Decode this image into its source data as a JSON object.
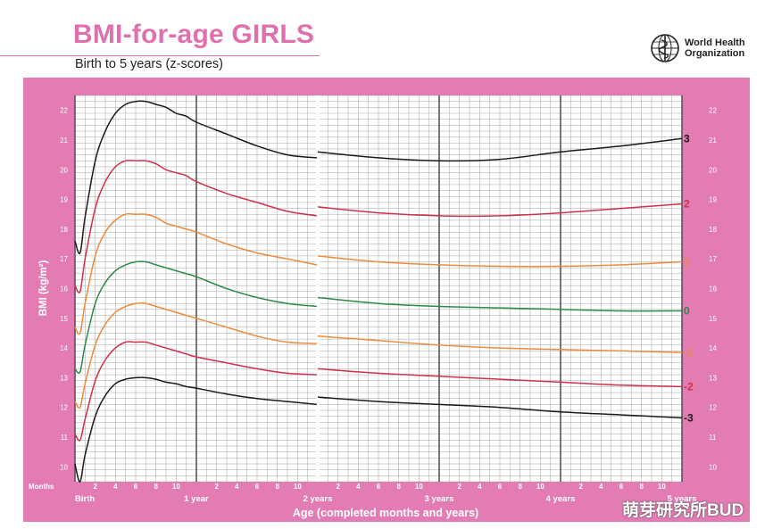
{
  "header": {
    "title": "BMI-for-age GIRLS",
    "subtitle": "Birth to 5 years (z-scores)",
    "org_line1": "World Health",
    "org_line2": "Organization"
  },
  "watermark": "萌芽研究所BUD",
  "colors": {
    "frame": "#e37cb3",
    "grid_minor": "#9a9a9a",
    "grid_major": "#555555",
    "sd3": "#1a1a1a",
    "sd2": "#d0304a",
    "sd1": "#f08a3a",
    "median": "#2a8a48"
  },
  "chart_data": {
    "type": "line",
    "title": "BMI-for-age GIRLS",
    "subtitle": "Birth to 5 years (z-scores)",
    "xlabel": "Age (completed months and years)",
    "ylabel": "BMI (kg/m²)",
    "xlim": [
      0,
      60
    ],
    "ylim": [
      9.5,
      22.5
    ],
    "yticks": [
      10,
      11,
      12,
      13,
      14,
      15,
      16,
      17,
      18,
      19,
      20,
      21,
      22
    ],
    "months_label": "Months",
    "x_month_labels": [
      "2",
      "4",
      "6",
      "8",
      "10"
    ],
    "x_year_labels": [
      "Birth",
      "1 year",
      "2 years",
      "3 years",
      "4 years",
      "5 years"
    ],
    "grid": true,
    "gap_at_month": 24,
    "series": [
      {
        "name": "3",
        "color_key": "sd3",
        "x": [
          0,
          0.5,
          1,
          2,
          3,
          4,
          5,
          6,
          7,
          8,
          9,
          10,
          11,
          12,
          15,
          18,
          21,
          23.9,
          24,
          30,
          36,
          42,
          48,
          54,
          60
        ],
        "y": [
          17.6,
          17.2,
          18.4,
          20.3,
          21.3,
          21.9,
          22.2,
          22.3,
          22.3,
          22.2,
          22.1,
          21.9,
          21.8,
          21.6,
          21.2,
          20.8,
          20.5,
          20.4,
          20.6,
          20.4,
          20.3,
          20.35,
          20.6,
          20.8,
          21.05
        ]
      },
      {
        "name": "2",
        "color_key": "sd2",
        "x": [
          0,
          0.5,
          1,
          2,
          3,
          4,
          5,
          6,
          7,
          8,
          9,
          10,
          11,
          12,
          15,
          18,
          21,
          23.9,
          24,
          30,
          36,
          42,
          48,
          54,
          60
        ],
        "y": [
          16.1,
          15.9,
          17.0,
          18.7,
          19.6,
          20.1,
          20.3,
          20.3,
          20.3,
          20.2,
          20.0,
          19.9,
          19.8,
          19.6,
          19.2,
          18.9,
          18.6,
          18.45,
          18.75,
          18.55,
          18.45,
          18.45,
          18.55,
          18.7,
          18.85
        ]
      },
      {
        "name": "1",
        "color_key": "sd1",
        "x": [
          0,
          0.5,
          1,
          2,
          3,
          4,
          5,
          6,
          7,
          8,
          9,
          10,
          11,
          12,
          15,
          18,
          21,
          23.9,
          24,
          30,
          36,
          42,
          48,
          54,
          60
        ],
        "y": [
          14.7,
          14.5,
          15.5,
          17.1,
          17.9,
          18.3,
          18.5,
          18.5,
          18.5,
          18.4,
          18.2,
          18.1,
          18.0,
          17.9,
          17.5,
          17.2,
          17.0,
          16.8,
          17.1,
          16.9,
          16.8,
          16.75,
          16.75,
          16.8,
          16.9
        ]
      },
      {
        "name": "0",
        "color_key": "median",
        "x": [
          0,
          0.5,
          1,
          2,
          3,
          4,
          5,
          6,
          7,
          8,
          9,
          10,
          11,
          12,
          15,
          18,
          21,
          23.9,
          24,
          30,
          36,
          42,
          48,
          54,
          60
        ],
        "y": [
          13.3,
          13.2,
          14.1,
          15.5,
          16.2,
          16.6,
          16.8,
          16.9,
          16.9,
          16.8,
          16.7,
          16.6,
          16.5,
          16.4,
          16.0,
          15.7,
          15.5,
          15.4,
          15.7,
          15.5,
          15.4,
          15.35,
          15.3,
          15.25,
          15.25
        ]
      },
      {
        "name": "-1",
        "color_key": "sd1",
        "x": [
          0,
          0.5,
          1,
          2,
          3,
          4,
          5,
          6,
          7,
          8,
          9,
          10,
          11,
          12,
          15,
          18,
          21,
          23.9,
          24,
          30,
          36,
          42,
          48,
          54,
          60
        ],
        "y": [
          12.2,
          12.0,
          12.8,
          14.1,
          14.8,
          15.2,
          15.4,
          15.5,
          15.5,
          15.4,
          15.3,
          15.2,
          15.1,
          15.0,
          14.7,
          14.4,
          14.2,
          14.15,
          14.4,
          14.25,
          14.1,
          14.0,
          13.95,
          13.9,
          13.85
        ]
      },
      {
        "name": "-2",
        "color_key": "sd2",
        "x": [
          0,
          0.5,
          1,
          2,
          3,
          4,
          5,
          6,
          7,
          8,
          9,
          10,
          11,
          12,
          15,
          18,
          21,
          23.9,
          24,
          30,
          36,
          42,
          48,
          54,
          60
        ],
        "y": [
          11.1,
          10.9,
          11.6,
          12.9,
          13.6,
          14.0,
          14.2,
          14.2,
          14.2,
          14.1,
          14.0,
          13.9,
          13.8,
          13.7,
          13.5,
          13.3,
          13.15,
          13.1,
          13.3,
          13.15,
          13.05,
          12.95,
          12.85,
          12.75,
          12.7
        ]
      },
      {
        "name": "-3",
        "color_key": "sd3",
        "x": [
          0,
          0.5,
          1,
          2,
          3,
          4,
          5,
          6,
          7,
          8,
          9,
          10,
          11,
          12,
          15,
          18,
          21,
          23.9,
          24,
          30,
          36,
          42,
          48,
          54,
          60
        ],
        "y": [
          10.1,
          9.5,
          10.4,
          11.7,
          12.4,
          12.8,
          12.95,
          13.0,
          13.0,
          12.95,
          12.85,
          12.8,
          12.7,
          12.65,
          12.45,
          12.3,
          12.2,
          12.1,
          12.35,
          12.2,
          12.1,
          12.0,
          11.85,
          11.75,
          11.65
        ]
      }
    ]
  }
}
